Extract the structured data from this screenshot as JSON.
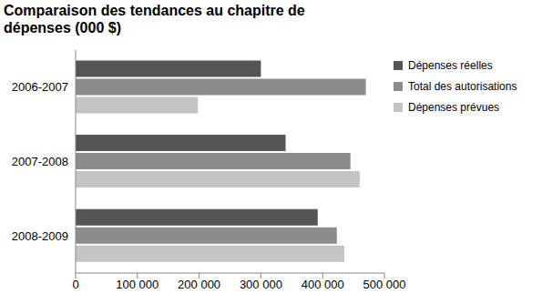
{
  "chart_data": {
    "type": "bar",
    "title": "Comparaison des tendances au chapitre de dépenses (000 $)",
    "orientation": "horizontal",
    "categories": [
      "2006-2007",
      "2007-2008",
      "2008-2009"
    ],
    "series": [
      {
        "name": "Dépenses réelles",
        "color": "#555555",
        "values": [
          300000,
          340000,
          392000
        ]
      },
      {
        "name": "Total des autorisations",
        "color": "#8c8c8c",
        "values": [
          470000,
          445000,
          423000
        ]
      },
      {
        "name": "Dépenses prévues",
        "color": "#c4c4c4",
        "values": [
          198000,
          460000,
          435000
        ]
      }
    ],
    "xlim": [
      0,
      500000
    ],
    "xticks": [
      0,
      {
        "value": 100000,
        "label": "100 000"
      },
      {
        "value": 200000,
        "label": "200 000"
      },
      {
        "value": 300000,
        "label": "300 000"
      },
      {
        "value": 400000,
        "label": "400 000"
      },
      {
        "value": 500000,
        "label": "500 000"
      }
    ],
    "grid": false,
    "legend": "right"
  }
}
